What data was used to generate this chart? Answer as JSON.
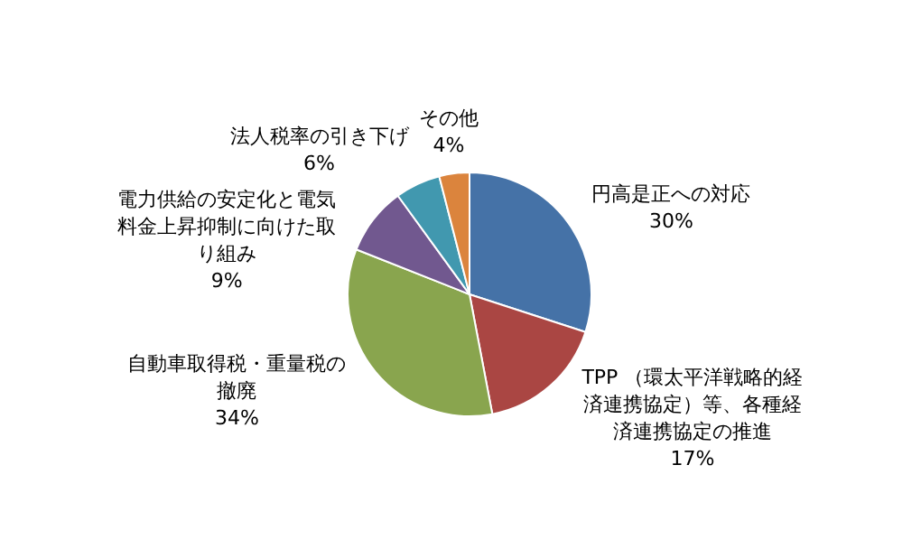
{
  "chart_data": {
    "type": "pie",
    "categories": [
      "円高是正への対応",
      "TPP （環太平洋戦略的経済連携協定）等、各種経済連携協定の推進",
      "自動車取得税・重量税の撤廃",
      "電力供給の安定化と電気料金上昇抑制に向けた取り組み",
      "法人税率の引き下げ",
      "その他"
    ],
    "values": [
      30,
      17,
      34,
      9,
      6,
      4
    ],
    "colors": [
      "#4572a7",
      "#aa4643",
      "#89a54e",
      "#71588f",
      "#4198af",
      "#db843d"
    ],
    "value_labels": [
      "30%",
      "17%",
      "34%",
      "9%",
      "6%",
      "4%"
    ],
    "legend": false
  }
}
